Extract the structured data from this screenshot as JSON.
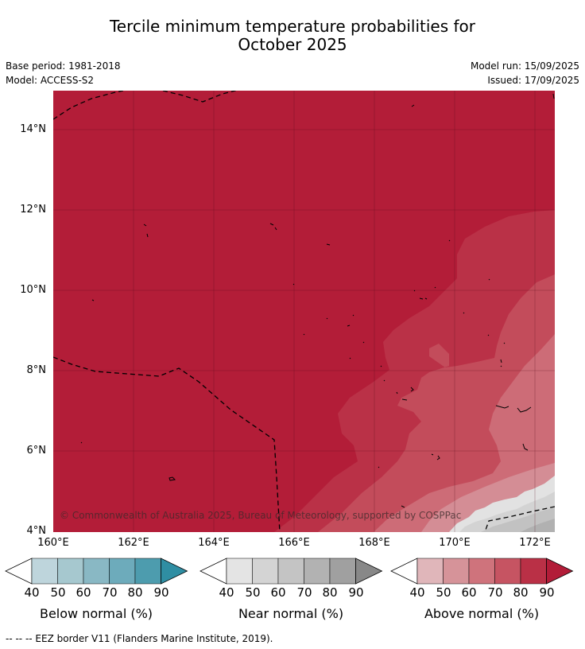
{
  "title_line1": "Tercile minimum temperature probabilities for",
  "title_line2": "October 2025",
  "base_period": "Base period: 1981-2018",
  "model": "Model: ACCESS-S2",
  "model_run": "Model run: 15/09/2025",
  "issued": "Issued: 17/09/2025",
  "copyright": "© Commonwealth of Australia 2025, Bureau of Meteorology, supported by COSPPac",
  "footnote": "--  --  -- EEZ border V11 (Flanders Marine Institute, 2019).",
  "y_ticks": [
    "14°N",
    "12°N",
    "10°N",
    "8°N",
    "6°N",
    "4°N"
  ],
  "x_ticks": [
    "160°E",
    "162°E",
    "164°E",
    "166°E",
    "168°E",
    "170°E",
    "172°E"
  ],
  "colorbars": [
    {
      "title": "Below normal (%)",
      "ticks": [
        "40",
        "50",
        "60",
        "70",
        "80",
        "90"
      ],
      "colors": [
        "#ffffff",
        "#bed5dc",
        "#a6c8cf",
        "#89b8c4",
        "#6dabbb",
        "#4d9cae",
        "#2f8ea3"
      ]
    },
    {
      "title": "Near normal (%)",
      "ticks": [
        "40",
        "50",
        "60",
        "70",
        "80",
        "90"
      ],
      "colors": [
        "#ffffff",
        "#e4e4e4",
        "#d4d4d4",
        "#c4c4c4",
        "#b2b2b2",
        "#a0a0a0",
        "#888888"
      ]
    },
    {
      "title": "Above normal (%)",
      "ticks": [
        "40",
        "50",
        "60",
        "70",
        "80",
        "90"
      ],
      "colors": [
        "#ffffff",
        "#e0b6ba",
        "#d69399",
        "#cf737c",
        "#c65462",
        "#ba3046",
        "#b21c38"
      ]
    }
  ],
  "map_colors": {
    "above_90": "#b31d38",
    "above_80": "#ba3147",
    "above_70": "#c34c5b",
    "above_60": "#cd6c77",
    "above_50": "#d48d95",
    "near_40": "#e2e2e2",
    "near_50": "#d3d3d3",
    "near_60": "#c2c2c2",
    "near_70": "#b1b1b1"
  }
}
